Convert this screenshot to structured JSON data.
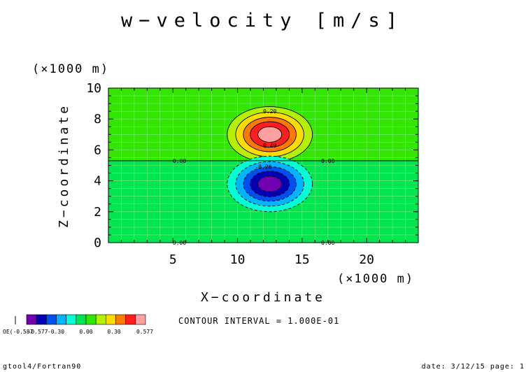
{
  "title": "w−velocity [m/s]",
  "footer": {
    "left": "gtool4/Fortran90",
    "right": "date: 3/12/15 page: 1"
  },
  "contour_interval": "CONTOUR INTERVAL = 1.000E-01",
  "colorbar": {
    "colors": [
      "#7000b0",
      "#0000b4",
      "#0050f0",
      "#00b4ff",
      "#00ffd2",
      "#00e650",
      "#32e600",
      "#b4f000",
      "#ffdc00",
      "#ff7800",
      "#ff1e1e",
      "#ffa0a0"
    ],
    "tick_labels": [
      "-0.577",
      "-0.30",
      "0.00",
      "0.30",
      "0.577"
    ],
    "left_label": "OE(-0.587"
  },
  "chart_data": {
    "type": "contour",
    "title": "w−velocity [m/s]",
    "xlabel": "X−coordinate",
    "ylabel": "Z−coordinate",
    "x_unit_label": "(×1000 m)",
    "y_unit_label": "(×1000 m)",
    "xlim": [
      0,
      24
    ],
    "ylim": [
      0,
      10
    ],
    "x_ticks": [
      5,
      10,
      15,
      20
    ],
    "y_ticks": [
      0,
      2,
      4,
      6,
      8,
      10
    ],
    "background_value": 0.0,
    "background_color": "#32e600",
    "lower_background_color": "#00e650",
    "zero_line_z": 5.3,
    "field": {
      "positive_cell": {
        "center": [
          12.5,
          7.0
        ],
        "radius_x": 3.3,
        "radius_z": 1.8,
        "max": 0.577
      },
      "negative_cell": {
        "center": [
          12.5,
          3.8
        ],
        "radius_x": 3.3,
        "radius_z": 1.8,
        "min": -0.587
      }
    },
    "contour_labels": [
      {
        "text": "0.20",
        "x": 12.5,
        "z": 8.5
      },
      {
        "text": "0.40",
        "x": 12.5,
        "z": 6.3
      },
      {
        "text": "0.00",
        "x": 5.5,
        "z": 5.3
      },
      {
        "text": "0.00",
        "x": 17.0,
        "z": 5.3
      },
      {
        "text": "-0.20",
        "x": 12.0,
        "z": 4.9
      },
      {
        "text": "0.00",
        "x": 5.5,
        "z": 0.0
      },
      {
        "text": "0.00",
        "x": 17.0,
        "z": 0.0
      }
    ]
  }
}
